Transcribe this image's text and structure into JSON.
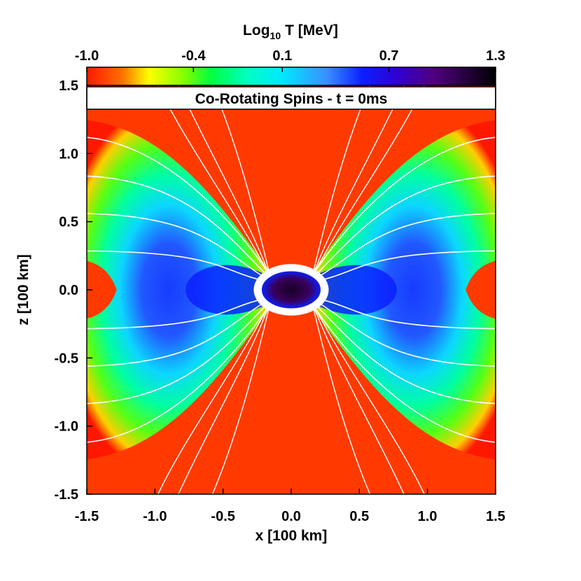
{
  "chart_data": {
    "type": "heatmap",
    "quantity": "temperature",
    "colorbar": {
      "label_main": "Log",
      "label_sub": "10",
      "label_rest": "T [MeV]",
      "min": -1.0,
      "max": 1.3,
      "ticks": [
        "-1.0",
        "-0.4",
        "0.1",
        "0.7",
        "1.3"
      ],
      "tick_values": [
        -1.0,
        -0.4,
        0.1,
        0.7,
        1.3
      ]
    },
    "title": "Co-Rotating Spins - t = 0ms",
    "xlabel": "x [100 km]",
    "ylabel": "z [100 km]",
    "xlim": [
      -1.5,
      1.5
    ],
    "ylim": [
      -1.5,
      1.5
    ],
    "xticks": [
      "-1.5",
      "-1.0",
      "-0.5",
      "0.0",
      "0.5",
      "1.0",
      "1.5"
    ],
    "xtick_values": [
      -1.5,
      -1.0,
      -0.5,
      0.0,
      0.5,
      1.0,
      1.5
    ],
    "yticks": [
      "1.5",
      "1.0",
      "0.5",
      "0.0",
      "-0.5",
      "-1.0",
      "-1.5"
    ],
    "ytick_values": [
      1.5,
      1.0,
      0.5,
      0.0,
      -0.5,
      -1.0,
      -1.5
    ],
    "background_value": -1.0,
    "structure": {
      "lobe_levels": [
        -0.7,
        -0.4,
        -0.15,
        0.15,
        0.45
      ],
      "core_center": [
        0.0,
        0.0
      ],
      "core_radii": [
        0.11,
        0.07
      ],
      "core_value": 1.05,
      "disk_half_width": 0.55,
      "disk_value": 0.6,
      "contour_color": "#ffffff"
    },
    "colors": {
      "background": "#ff3a00",
      "colorbar_stops": [
        {
          "v": -1.0,
          "c": "#ff1800"
        },
        {
          "v": -0.8,
          "c": "#ff7000"
        },
        {
          "v": -0.65,
          "c": "#ffff00"
        },
        {
          "v": -0.45,
          "c": "#80ff00"
        },
        {
          "v": -0.3,
          "c": "#00ff40"
        },
        {
          "v": -0.1,
          "c": "#00ffc0"
        },
        {
          "v": 0.1,
          "c": "#00e8ff"
        },
        {
          "v": 0.35,
          "c": "#3a90ff"
        },
        {
          "v": 0.55,
          "c": "#0a20ff"
        },
        {
          "v": 0.75,
          "c": "#3000d0"
        },
        {
          "v": 0.95,
          "c": "#500080"
        },
        {
          "v": 1.3,
          "c": "#000000"
        }
      ]
    }
  }
}
